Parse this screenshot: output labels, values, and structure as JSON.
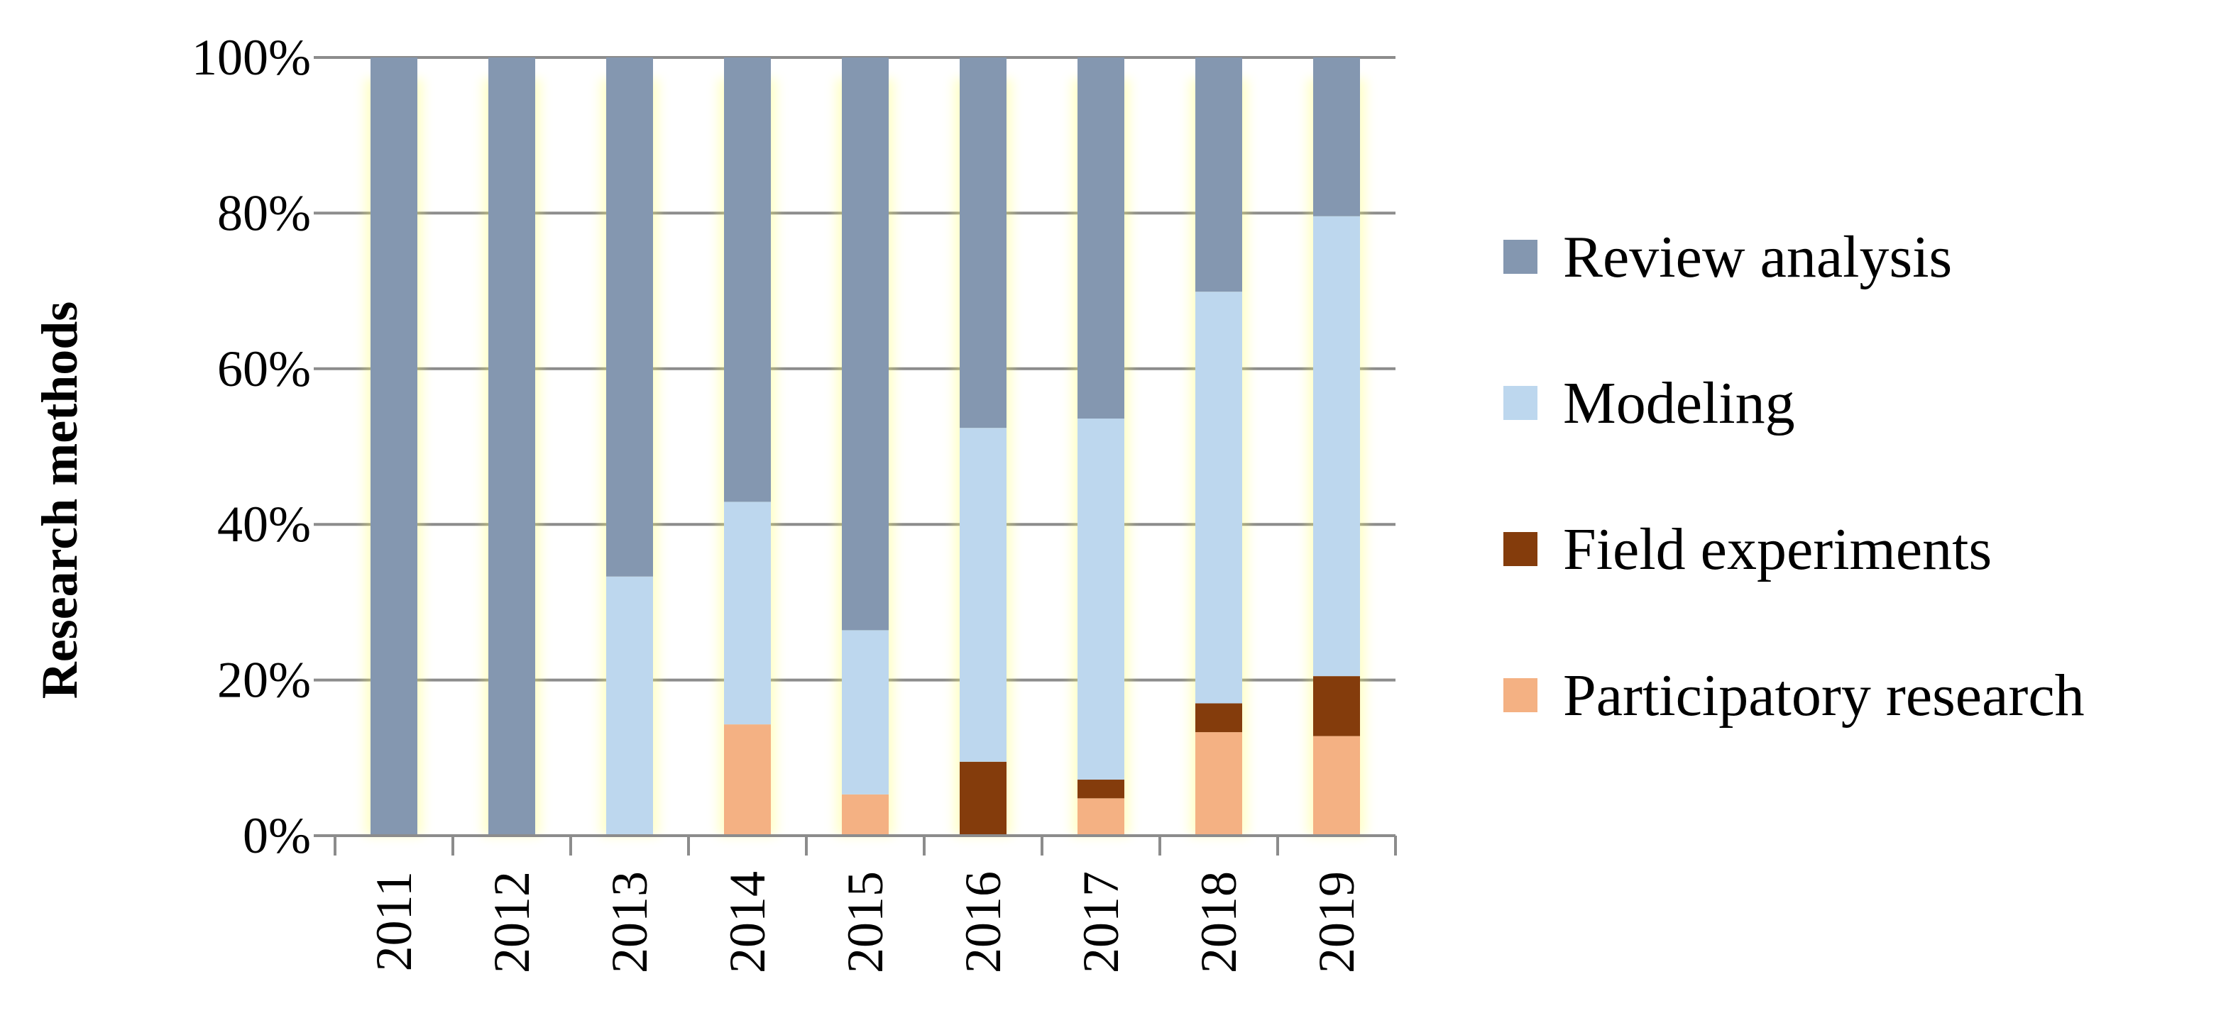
{
  "chart_data": {
    "type": "bar",
    "stacked": true,
    "percent": true,
    "title": "",
    "xlabel": "",
    "ylabel": "Research methods",
    "ylim": [
      0,
      100
    ],
    "yticks": [
      "0%",
      "20%",
      "40%",
      "60%",
      "80%",
      "100%"
    ],
    "grid": true,
    "legend_position": "right",
    "categories": [
      "2011",
      "2012",
      "2013",
      "2014",
      "2015",
      "2016",
      "2017",
      "2018",
      "2019"
    ],
    "series": [
      {
        "name": "Participatory research",
        "color": "#f4b183",
        "values": [
          0,
          0,
          0,
          14.3,
          5.3,
          0,
          4.8,
          13.3,
          12.8
        ]
      },
      {
        "name": "Field experiments",
        "color": "#843c0c",
        "values": [
          0,
          0,
          0,
          0,
          0,
          9.5,
          2.4,
          3.7,
          7.7
        ]
      },
      {
        "name": "Modeling",
        "color": "#bdd7ee",
        "values": [
          0,
          0,
          33.3,
          28.6,
          21.1,
          42.9,
          46.4,
          52.9,
          59.1
        ]
      },
      {
        "name": "Review analysis",
        "color": "#8497b0",
        "values": [
          100,
          100,
          66.7,
          57.1,
          73.6,
          47.6,
          46.4,
          30.1,
          20.4
        ]
      }
    ],
    "legend_order": [
      "Review analysis",
      "Modeling",
      "Field experiments",
      "Participatory research"
    ]
  }
}
